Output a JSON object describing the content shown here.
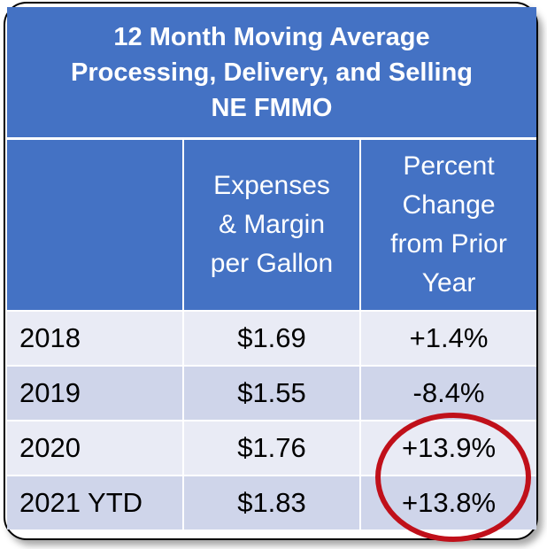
{
  "title": {
    "line1": "12 Month Moving Average",
    "line2": "Processing, Delivery, and Selling",
    "line3": "NE FMMO"
  },
  "headers": {
    "year": "",
    "expenses": [
      "Expenses",
      "& Margin",
      "per Gallon"
    ],
    "percent": [
      "Percent",
      "Change",
      "from Prior",
      "Year"
    ]
  },
  "rows": [
    {
      "year": "2018",
      "expenses": "$1.69",
      "percent": "+1.4%"
    },
    {
      "year": "2019",
      "expenses": "$1.55",
      "percent": "-8.4%"
    },
    {
      "year": "2020",
      "expenses": "$1.76",
      "percent": "+13.9%"
    },
    {
      "year": "2021 YTD",
      "expenses": "$1.83",
      "percent": "+13.8%"
    }
  ],
  "colors": {
    "header_blue": "#4472c4",
    "row_light": "#e9ebf5",
    "row_dark": "#cfd5ea",
    "highlight_circle": "#c0101a"
  }
}
